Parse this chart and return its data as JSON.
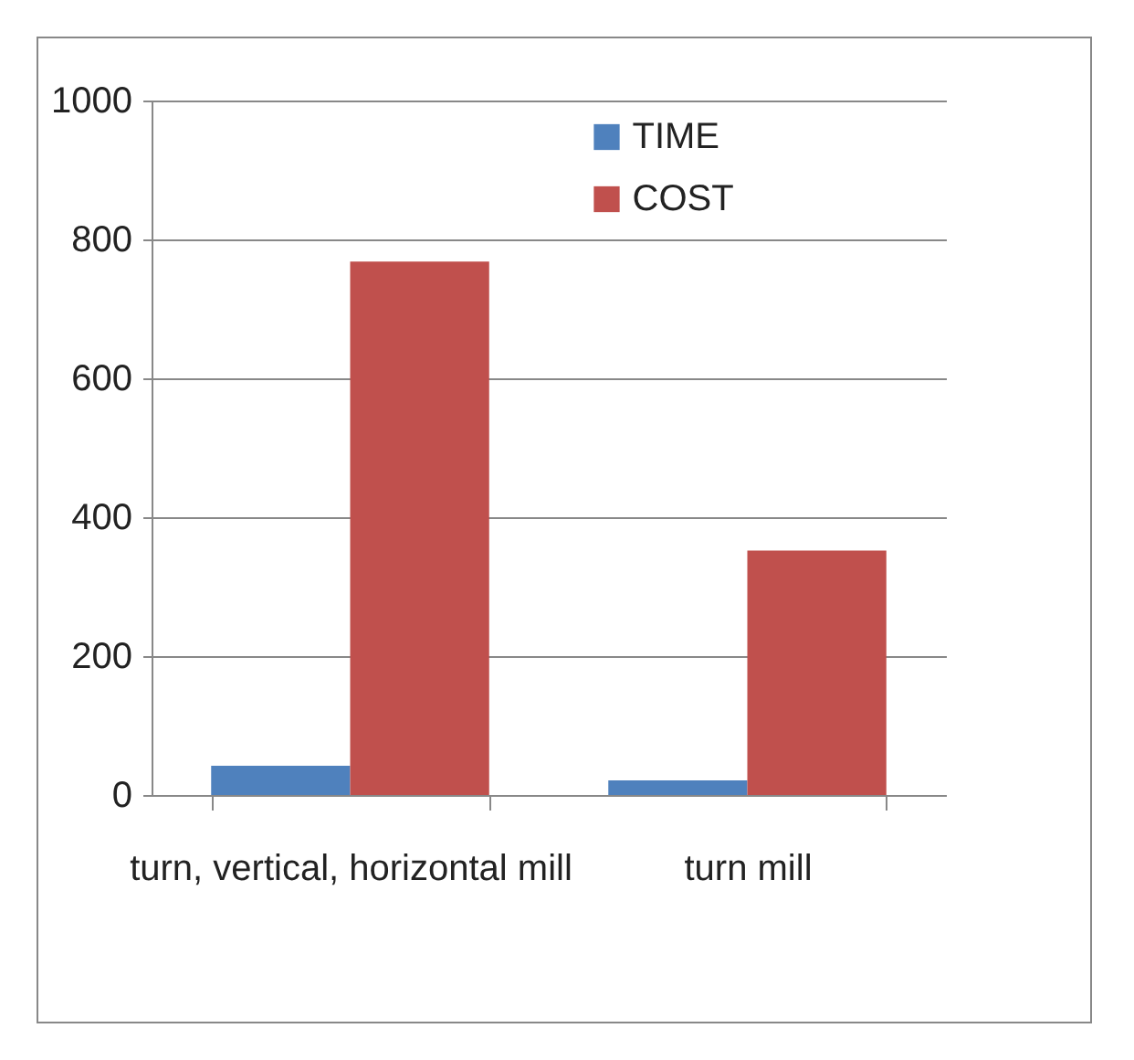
{
  "chart_data": {
    "type": "bar",
    "categories": [
      "turn, vertical, horizontal mill",
      "turn mill"
    ],
    "series": [
      {
        "name": "TIME",
        "color": "#4f81bd",
        "values": [
          42,
          21
        ]
      },
      {
        "name": "COST",
        "color": "#c0504d",
        "values": [
          768,
          352
        ]
      }
    ],
    "ylim": [
      0,
      1000
    ],
    "yticks": [
      0,
      200,
      400,
      600,
      800,
      1000
    ],
    "grid": "y",
    "legend": "top"
  }
}
